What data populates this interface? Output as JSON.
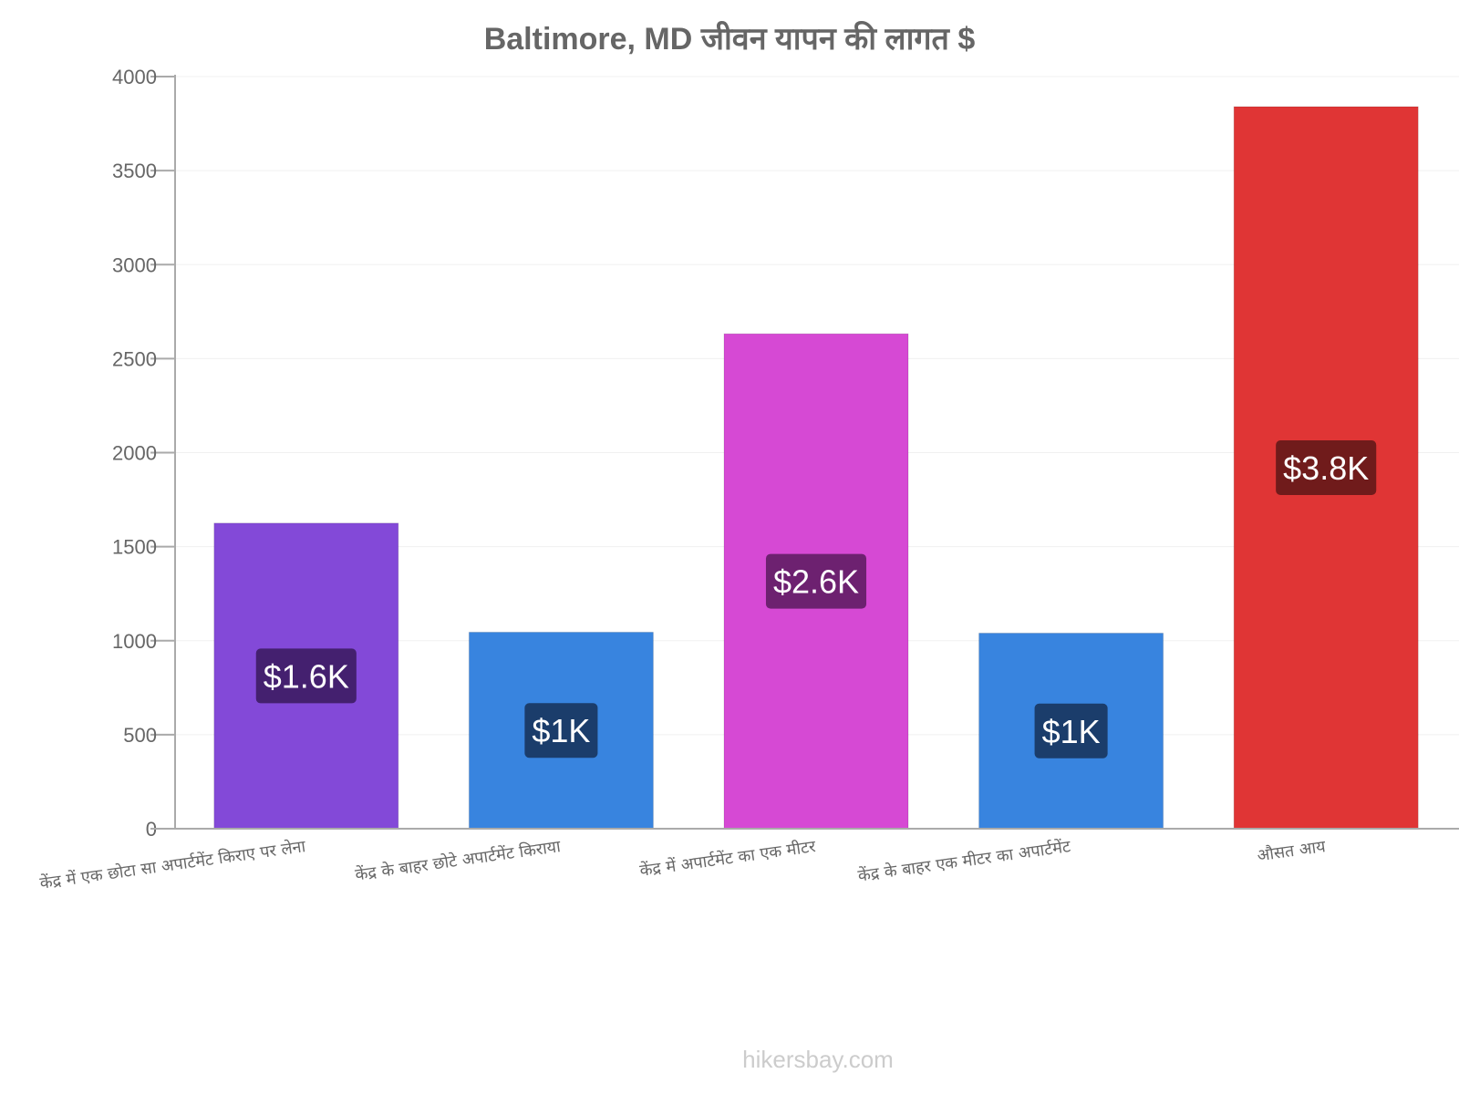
{
  "chart_data": {
    "type": "bar",
    "title": "Baltimore, MD जीवन यापन की लागत $",
    "categories": [
      "केंद्र में एक छोटा सा अपार्टमेंट किराए पर लेना",
      "केंद्र के बाहर छोटे अपार्टमेंट किराया",
      "केंद्र में अपार्टमेंट का एक मीटर",
      "केंद्र के बाहर एक मीटर का अपार्टमेंट",
      "औसत आय"
    ],
    "values": [
      1625,
      1045,
      2632,
      1040,
      3840
    ],
    "data_labels": [
      "$1.6K",
      "$1K",
      "$2.6K",
      "$1K",
      "$3.8K"
    ],
    "colors": [
      "#8349d8",
      "#3884df",
      "#d649d4",
      "#3884df",
      "#e03535"
    ],
    "label_colors": [
      "#44206f",
      "#1b3d6b",
      "#6d2170",
      "#1b3d6b",
      "#701b1b"
    ],
    "ylim": [
      0,
      4000
    ],
    "yticks": [
      0,
      500,
      1000,
      1500,
      2000,
      2500,
      3000,
      3500,
      4000
    ],
    "xlabel": "",
    "ylabel": "",
    "grid": true
  },
  "watermark": "hikersbay.com"
}
